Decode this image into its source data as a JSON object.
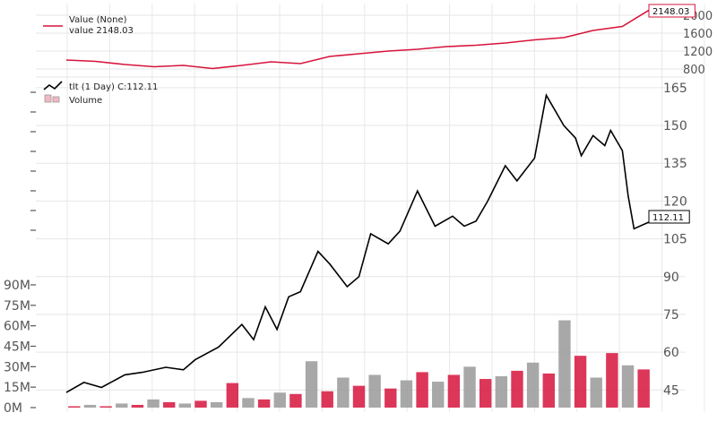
{
  "chart_data": [
    {
      "type": "line",
      "title": "",
      "legend": {
        "placement": "top-left",
        "entries": [
          "Value (None)",
          "value 2148.03"
        ]
      },
      "series": [
        {
          "name": "Value (None)",
          "color": "#d6143c",
          "x": [
            0,
            0.05,
            0.1,
            0.15,
            0.2,
            0.25,
            0.3,
            0.35,
            0.4,
            0.45,
            0.5,
            0.55,
            0.6,
            0.65,
            0.7,
            0.75,
            0.8,
            0.85,
            0.9,
            0.95,
            1.0
          ],
          "y": [
            1000,
            970,
            900,
            850,
            880,
            810,
            880,
            960,
            920,
            1080,
            1140,
            1200,
            1240,
            1300,
            1330,
            1380,
            1450,
            1500,
            1660,
            1750,
            2148.03
          ]
        }
      ],
      "last_value_label": "2148.03",
      "yticks": [
        800,
        1200,
        1600,
        2000
      ],
      "ylim": [
        700,
        2180
      ],
      "grid": true
    },
    {
      "type": "line",
      "legend": {
        "placement": "top-left",
        "entries": [
          "tlt (1 Day) C:112.11",
          "Volume"
        ]
      },
      "series": [
        {
          "name": "tlt (1 Day) C:112.11",
          "color": "#000000",
          "x": [
            0,
            0.03,
            0.06,
            0.1,
            0.13,
            0.17,
            0.2,
            0.22,
            0.26,
            0.3,
            0.32,
            0.34,
            0.36,
            0.38,
            0.4,
            0.43,
            0.45,
            0.48,
            0.5,
            0.52,
            0.55,
            0.57,
            0.6,
            0.63,
            0.66,
            0.68,
            0.7,
            0.72,
            0.75,
            0.77,
            0.8,
            0.82,
            0.85,
            0.87,
            0.88,
            0.9,
            0.92,
            0.93,
            0.95,
            0.96,
            0.97,
            1.0
          ],
          "y": [
            44,
            48,
            46,
            51,
            52,
            54,
            53,
            57,
            62,
            71,
            65,
            78,
            69,
            82,
            84,
            100,
            95,
            86,
            90,
            107,
            103,
            108,
            124,
            110,
            114,
            110,
            112,
            120,
            134,
            128,
            137,
            162,
            150,
            145,
            138,
            146,
            142,
            148,
            140,
            122,
            109,
            112.11
          ]
        },
        {
          "name": "Volume",
          "type": "bar",
          "colors": [
            "#d6143c",
            "#999999"
          ],
          "values_M": [
            1,
            2,
            1,
            3,
            2,
            6,
            4,
            3,
            5,
            4,
            18,
            7,
            6,
            11,
            10,
            34,
            12,
            22,
            16,
            24,
            14,
            20,
            26,
            19,
            24,
            30,
            21,
            23,
            27,
            33,
            25,
            64,
            38,
            22,
            40,
            31,
            28
          ]
        }
      ],
      "last_value_label": "112.11",
      "yticks_price": [
        45,
        60,
        75,
        90,
        105,
        120,
        135,
        150,
        165
      ],
      "yticks_volume": [
        "0M",
        "15M",
        "30M",
        "45M",
        "60M",
        "75M",
        "90M"
      ],
      "price_ylim": [
        38,
        166
      ],
      "volume_ylim_M": [
        0,
        90
      ],
      "grid": true
    }
  ]
}
